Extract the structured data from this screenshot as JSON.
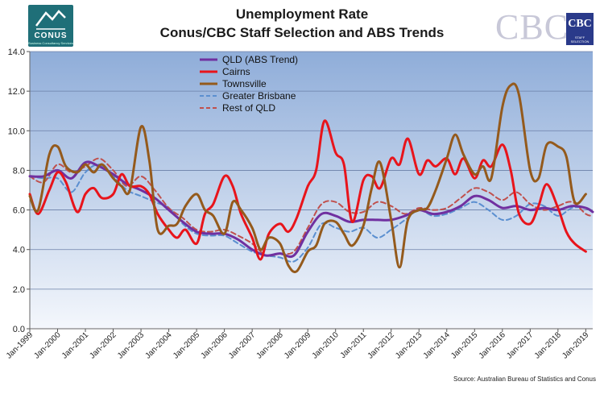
{
  "header": {
    "title_line1": "Unemployment Rate",
    "title_line2": "Conus/CBC Staff Selection and ABS Trends"
  },
  "logos": {
    "conus_text": "CONUS",
    "conus_subtext": "Business Consultancy Services",
    "cbc_text": "CBC",
    "cbc_badge_text": "CBC",
    "cbc_badge_subtext": "STAFF SELECTION"
  },
  "source": "Source: Australian Bureau of Statistics and Conus",
  "colors": {
    "plot_top": "#8fadd9",
    "plot_bottom": "#f4f7fc",
    "qld": "#7030a0",
    "cairns": "#e8141b",
    "townsville": "#945a1c",
    "brisbane": "#5b8fd0",
    "rest": "#c0504d"
  },
  "chart_data": {
    "type": "line",
    "title": "Unemployment Rate Conus/CBC Staff Selection and ABS Trends",
    "x_start_year": 1999,
    "x_end_year": 2019.25,
    "x_ticks": [
      "Jan-1999",
      "Jan-2000",
      "Jan-2001",
      "Jan-2002",
      "Jan-2003",
      "Jan-2004",
      "Jan-2005",
      "Jan-2006",
      "Jan-2007",
      "Jan-2008",
      "Jan-2009",
      "Jan-2010",
      "Jan-2011",
      "Jan-2012",
      "Jan-2013",
      "Jan-2014",
      "Jan-2015",
      "Jan-2016",
      "Jan-2017",
      "Jan-2018",
      "Jan-2019"
    ],
    "y_ticks": [
      "0.0",
      "2.0",
      "4.0",
      "6.0",
      "8.0",
      "10.0",
      "12.0",
      "14.0"
    ],
    "ylim": [
      0,
      14
    ],
    "grid": true,
    "legend_position": "top-left",
    "series": [
      {
        "name": "QLD (ABS Trend)",
        "color": "#7030a0",
        "dash": false,
        "width": 3,
        "points": [
          [
            1999,
            7.7
          ],
          [
            1999.5,
            7.7
          ],
          [
            2000,
            8.0
          ],
          [
            2000.5,
            7.6
          ],
          [
            2001,
            8.4
          ],
          [
            2001.5,
            8.2
          ],
          [
            2002,
            7.8
          ],
          [
            2002.5,
            7.3
          ],
          [
            2003,
            7.0
          ],
          [
            2003.5,
            6.6
          ],
          [
            2004,
            6.0
          ],
          [
            2004.5,
            5.4
          ],
          [
            2005,
            4.9
          ],
          [
            2005.5,
            4.8
          ],
          [
            2006,
            4.8
          ],
          [
            2006.5,
            4.5
          ],
          [
            2007,
            4.0
          ],
          [
            2007.5,
            3.7
          ],
          [
            2008,
            3.8
          ],
          [
            2008.5,
            3.7
          ],
          [
            2009,
            4.9
          ],
          [
            2009.5,
            5.8
          ],
          [
            2010,
            5.7
          ],
          [
            2010.5,
            5.4
          ],
          [
            2011,
            5.5
          ],
          [
            2011.5,
            5.5
          ],
          [
            2012,
            5.5
          ],
          [
            2012.5,
            5.7
          ],
          [
            2013,
            6.0
          ],
          [
            2013.5,
            5.8
          ],
          [
            2014,
            5.9
          ],
          [
            2014.5,
            6.2
          ],
          [
            2015,
            6.7
          ],
          [
            2015.5,
            6.5
          ],
          [
            2016,
            6.1
          ],
          [
            2016.5,
            6.2
          ],
          [
            2017,
            6.0
          ],
          [
            2017.5,
            6.1
          ],
          [
            2018,
            6.0
          ],
          [
            2018.5,
            6.2
          ],
          [
            2019,
            6.1
          ],
          [
            2019.25,
            5.9
          ]
        ]
      },
      {
        "name": "Cairns",
        "color": "#e8141b",
        "dash": false,
        "width": 3,
        "points": [
          [
            1999,
            6.8
          ],
          [
            1999.3,
            5.8
          ],
          [
            1999.7,
            7.0
          ],
          [
            2000,
            7.9
          ],
          [
            2000.3,
            7.4
          ],
          [
            2000.7,
            5.9
          ],
          [
            2001,
            6.8
          ],
          [
            2001.3,
            7.1
          ],
          [
            2001.6,
            6.6
          ],
          [
            2002,
            6.8
          ],
          [
            2002.3,
            7.8
          ],
          [
            2002.6,
            7.2
          ],
          [
            2003,
            7.2
          ],
          [
            2003.3,
            6.8
          ],
          [
            2003.6,
            5.8
          ],
          [
            2004,
            5.0
          ],
          [
            2004.3,
            4.6
          ],
          [
            2004.6,
            5.0
          ],
          [
            2005,
            4.3
          ],
          [
            2005.3,
            5.8
          ],
          [
            2005.6,
            6.3
          ],
          [
            2006,
            7.7
          ],
          [
            2006.3,
            7.2
          ],
          [
            2006.6,
            5.8
          ],
          [
            2007,
            4.6
          ],
          [
            2007.3,
            3.5
          ],
          [
            2007.6,
            4.8
          ],
          [
            2008,
            5.3
          ],
          [
            2008.3,
            4.9
          ],
          [
            2008.6,
            5.6
          ],
          [
            2009,
            7.2
          ],
          [
            2009.3,
            8.0
          ],
          [
            2009.6,
            10.5
          ],
          [
            2010,
            8.9
          ],
          [
            2010.3,
            8.3
          ],
          [
            2010.6,
            5.4
          ],
          [
            2011,
            7.5
          ],
          [
            2011.3,
            7.7
          ],
          [
            2011.6,
            7.1
          ],
          [
            2012,
            8.6
          ],
          [
            2012.3,
            8.3
          ],
          [
            2012.6,
            9.6
          ],
          [
            2013,
            7.8
          ],
          [
            2013.3,
            8.5
          ],
          [
            2013.6,
            8.2
          ],
          [
            2014,
            8.6
          ],
          [
            2014.3,
            7.8
          ],
          [
            2014.6,
            8.6
          ],
          [
            2015,
            7.6
          ],
          [
            2015.3,
            8.5
          ],
          [
            2015.6,
            8.2
          ],
          [
            2016,
            9.3
          ],
          [
            2016.3,
            8.0
          ],
          [
            2016.6,
            5.8
          ],
          [
            2017,
            5.3
          ],
          [
            2017.3,
            6.2
          ],
          [
            2017.6,
            7.3
          ],
          [
            2018,
            6.1
          ],
          [
            2018.3,
            4.9
          ],
          [
            2018.6,
            4.3
          ],
          [
            2019,
            3.9
          ]
        ]
      },
      {
        "name": "Townsville",
        "color": "#945a1c",
        "dash": false,
        "width": 3,
        "points": [
          [
            1999,
            6.7
          ],
          [
            1999.3,
            6.0
          ],
          [
            1999.7,
            8.8
          ],
          [
            2000,
            9.2
          ],
          [
            2000.3,
            8.2
          ],
          [
            2000.7,
            7.9
          ],
          [
            2001,
            8.3
          ],
          [
            2001.3,
            7.9
          ],
          [
            2001.6,
            8.3
          ],
          [
            2002,
            7.6
          ],
          [
            2002.3,
            7.2
          ],
          [
            2002.6,
            7.0
          ],
          [
            2003,
            10.2
          ],
          [
            2003.3,
            8.5
          ],
          [
            2003.6,
            5.0
          ],
          [
            2004,
            5.2
          ],
          [
            2004.3,
            5.3
          ],
          [
            2004.6,
            6.2
          ],
          [
            2005,
            6.8
          ],
          [
            2005.3,
            6.0
          ],
          [
            2005.6,
            5.7
          ],
          [
            2006,
            4.8
          ],
          [
            2006.3,
            6.4
          ],
          [
            2006.6,
            6.0
          ],
          [
            2007,
            5.1
          ],
          [
            2007.3,
            4.0
          ],
          [
            2007.6,
            4.6
          ],
          [
            2008,
            4.3
          ],
          [
            2008.3,
            3.2
          ],
          [
            2008.6,
            2.9
          ],
          [
            2009,
            3.9
          ],
          [
            2009.3,
            4.2
          ],
          [
            2009.6,
            5.3
          ],
          [
            2010,
            5.4
          ],
          [
            2010.3,
            4.8
          ],
          [
            2010.6,
            4.2
          ],
          [
            2011,
            5.2
          ],
          [
            2011.3,
            7.1
          ],
          [
            2011.6,
            8.4
          ],
          [
            2012,
            5.5
          ],
          [
            2012.3,
            3.1
          ],
          [
            2012.6,
            5.5
          ],
          [
            2013,
            6.0
          ],
          [
            2013.3,
            6.1
          ],
          [
            2013.6,
            7.0
          ],
          [
            2014,
            8.6
          ],
          [
            2014.3,
            9.8
          ],
          [
            2014.6,
            8.8
          ],
          [
            2015,
            7.8
          ],
          [
            2015.3,
            8.2
          ],
          [
            2015.6,
            7.6
          ],
          [
            2016,
            11.2
          ],
          [
            2016.3,
            12.3
          ],
          [
            2016.6,
            11.8
          ],
          [
            2017,
            8.0
          ],
          [
            2017.3,
            7.6
          ],
          [
            2017.6,
            9.3
          ],
          [
            2018,
            9.2
          ],
          [
            2018.3,
            8.7
          ],
          [
            2018.6,
            6.4
          ],
          [
            2019,
            6.8
          ]
        ]
      },
      {
        "name": "Greater Brisbane",
        "color": "#5b8fd0",
        "dash": true,
        "width": 2,
        "points": [
          [
            1999,
            7.7
          ],
          [
            1999.5,
            7.6
          ],
          [
            2000,
            7.6
          ],
          [
            2000.5,
            6.9
          ],
          [
            2001,
            7.9
          ],
          [
            2001.5,
            8.3
          ],
          [
            2002,
            7.7
          ],
          [
            2002.5,
            7.0
          ],
          [
            2003,
            6.7
          ],
          [
            2003.5,
            6.4
          ],
          [
            2004,
            6.1
          ],
          [
            2004.5,
            5.3
          ],
          [
            2005,
            4.8
          ],
          [
            2005.5,
            4.7
          ],
          [
            2006,
            4.7
          ],
          [
            2006.5,
            4.3
          ],
          [
            2007,
            3.9
          ],
          [
            2007.5,
            3.7
          ],
          [
            2008,
            3.6
          ],
          [
            2008.5,
            3.4
          ],
          [
            2009,
            4.1
          ],
          [
            2009.5,
            5.3
          ],
          [
            2010,
            5.1
          ],
          [
            2010.5,
            4.9
          ],
          [
            2011,
            5.1
          ],
          [
            2011.5,
            4.6
          ],
          [
            2012,
            5.0
          ],
          [
            2012.5,
            5.5
          ],
          [
            2013,
            6.0
          ],
          [
            2013.5,
            5.7
          ],
          [
            2014,
            5.8
          ],
          [
            2014.5,
            6.1
          ],
          [
            2015,
            6.4
          ],
          [
            2015.5,
            6.0
          ],
          [
            2016,
            5.5
          ],
          [
            2016.5,
            5.7
          ],
          [
            2017,
            6.3
          ],
          [
            2017.5,
            6.2
          ],
          [
            2018,
            5.7
          ],
          [
            2018.5,
            6.1
          ],
          [
            2019,
            6.1
          ],
          [
            2019.25,
            5.9
          ]
        ]
      },
      {
        "name": "Rest of QLD",
        "color": "#c0504d",
        "dash": true,
        "width": 2,
        "points": [
          [
            1999,
            7.7
          ],
          [
            1999.5,
            7.4
          ],
          [
            2000,
            8.3
          ],
          [
            2000.5,
            7.9
          ],
          [
            2001,
            8.2
          ],
          [
            2001.5,
            8.6
          ],
          [
            2002,
            8.0
          ],
          [
            2002.5,
            7.2
          ],
          [
            2003,
            7.7
          ],
          [
            2003.5,
            7.0
          ],
          [
            2004,
            6.1
          ],
          [
            2004.5,
            5.6
          ],
          [
            2005,
            5.0
          ],
          [
            2005.5,
            4.9
          ],
          [
            2006,
            5.0
          ],
          [
            2006.5,
            4.7
          ],
          [
            2007,
            4.3
          ],
          [
            2007.5,
            3.7
          ],
          [
            2008,
            3.8
          ],
          [
            2008.5,
            3.9
          ],
          [
            2009,
            5.1
          ],
          [
            2009.5,
            6.3
          ],
          [
            2010,
            6.4
          ],
          [
            2010.5,
            5.9
          ],
          [
            2011,
            5.9
          ],
          [
            2011.5,
            6.4
          ],
          [
            2012,
            6.2
          ],
          [
            2012.5,
            5.8
          ],
          [
            2013,
            6.1
          ],
          [
            2013.5,
            6.0
          ],
          [
            2014,
            6.1
          ],
          [
            2014.5,
            6.6
          ],
          [
            2015,
            7.1
          ],
          [
            2015.5,
            6.9
          ],
          [
            2016,
            6.5
          ],
          [
            2016.5,
            6.9
          ],
          [
            2017,
            6.3
          ],
          [
            2017.5,
            6.0
          ],
          [
            2018,
            6.2
          ],
          [
            2018.5,
            6.4
          ],
          [
            2019,
            5.8
          ],
          [
            2019.25,
            5.7
          ]
        ]
      }
    ]
  }
}
